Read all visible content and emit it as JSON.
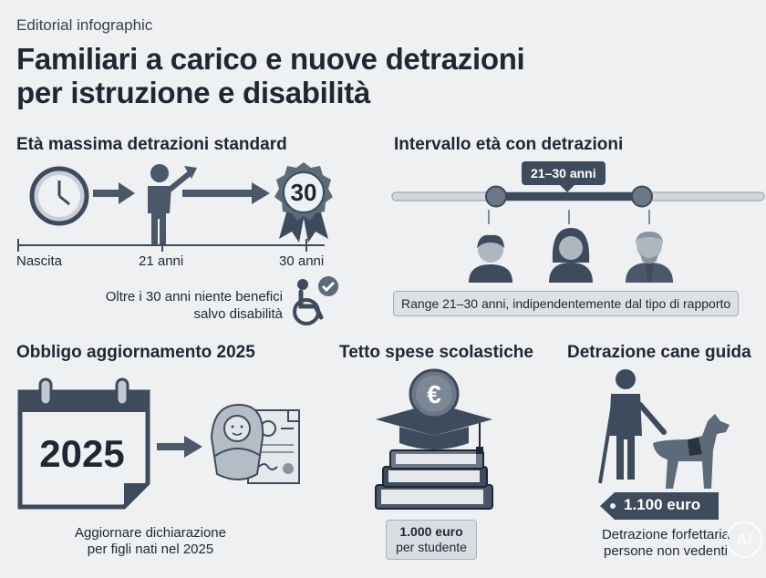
{
  "header": {
    "eyebrow": "Editorial infographic",
    "title_line1": "Familiari a carico e nuove detrazioni",
    "title_line2": "per istruzione e disabilità"
  },
  "section_max_age": {
    "heading": "Età massima detrazioni standard",
    "badge_number": "30",
    "timeline": [
      "Nascita",
      "21 anni",
      "30 anni"
    ],
    "note_line1": "Oltre i 30 anni niente benefici",
    "note_line2": "salvo disabilità",
    "icons": [
      "clock-icon",
      "arrow-right-icon",
      "person-growth-icon",
      "award-badge-icon",
      "wheelchair-check-icon"
    ]
  },
  "section_age_range": {
    "heading": "Intervallo età con detrazioni",
    "range_label": "21–30 anni",
    "caption": "Range 21–30 anni, indipendentemente dal tipo di rapporto",
    "icons": [
      "young-man-icon",
      "woman-icon",
      "elderly-man-icon"
    ]
  },
  "section_update": {
    "heading": "Obbligo aggiornamento 2025",
    "calendar_year": "2025",
    "caption_line1": "Aggiornare dichiarazione",
    "caption_line2": "per figli nati nel 2025",
    "icons": [
      "calendar-icon",
      "arrow-right-icon",
      "newborn-document-icon"
    ]
  },
  "section_school": {
    "heading": "Tetto spese scolastiche",
    "coin_symbol": "€",
    "tag_line1": "1.000 euro",
    "tag_line2": "per studente",
    "icons": [
      "graduation-cap-books-icon",
      "euro-coin-icon"
    ]
  },
  "section_guide_dog": {
    "heading": "Detrazione cane guida",
    "price": "1.100 euro",
    "caption_line1": "Detrazione forfettaria",
    "caption_line2": "persone non vedenti",
    "icons": [
      "blind-person-cane-icon",
      "guide-dog-icon",
      "price-tag-icon"
    ]
  },
  "watermark": "AI",
  "colors": {
    "background": "#eef0f2",
    "primary": "#3d4b5c",
    "light": "#d8dde2",
    "text": "#1f2733"
  }
}
